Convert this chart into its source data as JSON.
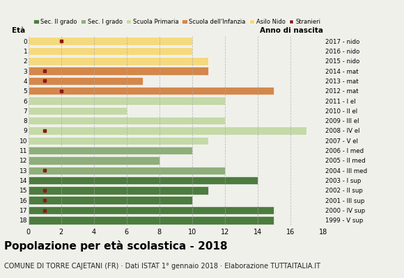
{
  "ages": [
    18,
    17,
    16,
    15,
    14,
    13,
    12,
    11,
    10,
    9,
    8,
    7,
    6,
    5,
    4,
    3,
    2,
    1,
    0
  ],
  "years": [
    "1999 - V sup",
    "2000 - IV sup",
    "2001 - III sup",
    "2002 - II sup",
    "2003 - I sup",
    "2004 - III med",
    "2005 - II med",
    "2006 - I med",
    "2007 - V el",
    "2008 - IV el",
    "2009 - III el",
    "2010 - II el",
    "2011 - I el",
    "2012 - mat",
    "2013 - mat",
    "2014 - mat",
    "2015 - nido",
    "2016 - nido",
    "2017 - nido"
  ],
  "bar_values": [
    15,
    15,
    10,
    11,
    14,
    12,
    8,
    10,
    11,
    17,
    12,
    6,
    12,
    15,
    7,
    11,
    11,
    10,
    10
  ],
  "stranieri_x": [
    0,
    1,
    1,
    1,
    0,
    1,
    0,
    0,
    0,
    1,
    0,
    0,
    0,
    2,
    1,
    1,
    0,
    0,
    2
  ],
  "categories": [
    "Sec. II grado",
    "Sec. I grado",
    "Scuola Primaria",
    "Scuola dell'Infanzia",
    "Asilo Nido"
  ],
  "cat_ages": {
    "Sec. II grado": [
      14,
      15,
      16,
      17,
      18
    ],
    "Sec. I grado": [
      11,
      12,
      13
    ],
    "Scuola Primaria": [
      6,
      7,
      8,
      9,
      10
    ],
    "Scuola dell'Infanzia": [
      3,
      4,
      5
    ],
    "Asilo Nido": [
      0,
      1,
      2
    ]
  },
  "cat_colors": {
    "Sec. II grado": "#4d7c3f",
    "Sec. I grado": "#8fae7b",
    "Scuola Primaria": "#c5d9a8",
    "Scuola dell'Infanzia": "#d4874a",
    "Asilo Nido": "#f5d97e"
  },
  "stranieri_color": "#8b1a1a",
  "grid_color": "#aaaaaa",
  "bg_color": "#f0f0eb",
  "xlim": [
    0,
    18
  ],
  "title": "Popolazione per età scolastica - 2018",
  "subtitle": "COMUNE DI TORRE CAJETANI (FR) · Dati ISTAT 1° gennaio 2018 · Elaborazione TUTTAITALIA.IT",
  "eta_label": "Età",
  "anno_label": "Anno di nascita",
  "title_fontsize": 11,
  "subtitle_fontsize": 7
}
